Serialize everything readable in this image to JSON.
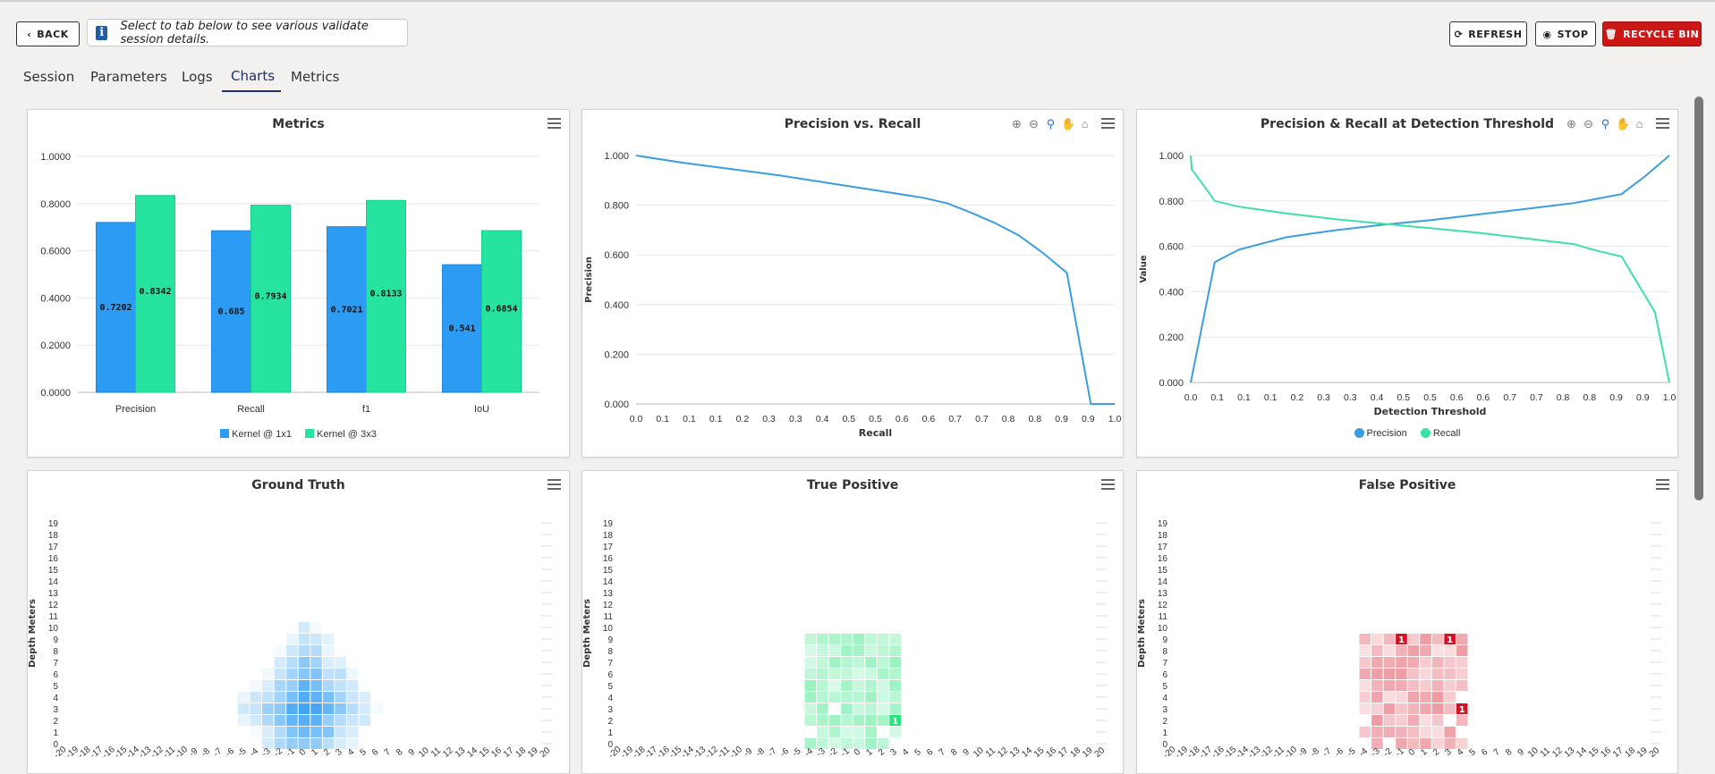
{
  "header": {
    "back_label": "BACK",
    "info_text": "Select to tab below to see various validate session details.",
    "refresh_label": "REFRESH",
    "stop_label": "STOP",
    "recycle_label": "RECYCLE BIN"
  },
  "tabs": [
    "Session",
    "Parameters",
    "Logs",
    "Charts",
    "Metrics"
  ],
  "active_tab": "Charts",
  "colors": {
    "blue": "#2b9bf4",
    "green": "#26e4a0",
    "line_blue": "#3a9ee0",
    "line_green": "#3ee0a6",
    "red": "#d61124",
    "recycle": "#cc1717"
  },
  "icons": {
    "back": "chevron-left-icon",
    "info": "info-icon",
    "refresh": "refresh-icon",
    "stop": "stop-circle-icon",
    "recycle": "trash-icon",
    "menu": "hamburger-menu-icon",
    "zoom_in": "zoom-in-icon",
    "zoom_out": "zoom-out-icon",
    "magnify": "magnify-icon",
    "pan": "pan-hand-icon",
    "home": "home-icon"
  },
  "chart_data": [
    {
      "type": "bar",
      "title": "Metrics",
      "categories": [
        "Precision",
        "Recall",
        "f1",
        "IoU"
      ],
      "series": [
        {
          "name": "Kernel @ 1x1",
          "values": [
            0.7202,
            0.685,
            0.7021,
            0.541
          ],
          "labels": [
            "0.7202",
            "0.685",
            "0.7021",
            "0.541"
          ]
        },
        {
          "name": "Kernel @ 3x3",
          "values": [
            0.8342,
            0.7934,
            0.8133,
            0.6854
          ],
          "labels": [
            "0.8342",
            "0.7934",
            "0.8133",
            "0.6854"
          ]
        }
      ],
      "y_ticks": [
        "0.0000",
        "0.2000",
        "0.4000",
        "0.6000",
        "0.8000",
        "1.0000"
      ],
      "ylim": [
        0,
        1
      ],
      "legend_position": "bottom-center"
    },
    {
      "type": "line",
      "title": "Precision vs. Recall",
      "xlabel": "Recall",
      "ylabel": "Precision",
      "xlim": [
        0,
        1
      ],
      "ylim": [
        0,
        1
      ],
      "x_ticks": [
        "0.0",
        "0.1",
        "0.1",
        "0.1",
        "0.2",
        "0.3",
        "0.3",
        "0.4",
        "0.5",
        "0.5",
        "0.6",
        "0.6",
        "0.7",
        "0.7",
        "0.8",
        "0.8",
        "0.9",
        "0.9",
        "1.0"
      ],
      "y_ticks": [
        "0.000",
        "0.200",
        "0.400",
        "0.600",
        "0.800",
        "1.000"
      ],
      "series": [
        {
          "x": [
            0.0,
            0.1,
            0.2,
            0.3,
            0.4,
            0.5,
            0.6,
            0.65,
            0.7,
            0.75,
            0.8,
            0.85,
            0.9,
            0.95,
            1.0
          ],
          "y": [
            1.0,
            0.97,
            0.945,
            0.92,
            0.89,
            0.86,
            0.83,
            0.808,
            0.77,
            0.728,
            0.678,
            0.608,
            0.528,
            0.0,
            0.0
          ]
        }
      ]
    },
    {
      "type": "line",
      "title": "Precision & Recall at Detection Threshold",
      "xlabel": "Detection Threshold",
      "ylabel": "Value",
      "xlim": [
        0,
        1
      ],
      "ylim": [
        0,
        1
      ],
      "x_ticks": [
        "0.0",
        "0.1",
        "0.1",
        "0.1",
        "0.2",
        "0.3",
        "0.3",
        "0.4",
        "0.5",
        "0.5",
        "0.6",
        "0.6",
        "0.7",
        "0.7",
        "0.8",
        "0.8",
        "0.9",
        "0.9",
        "1.0"
      ],
      "y_ticks": [
        "0.000",
        "0.200",
        "0.400",
        "0.600",
        "0.800",
        "1.000"
      ],
      "legend_position": "bottom-center",
      "series": [
        {
          "name": "Precision",
          "x": [
            0.0,
            0.05,
            0.1,
            0.2,
            0.3,
            0.4,
            0.5,
            0.6,
            0.7,
            0.8,
            0.9,
            0.95,
            1.0
          ],
          "y": [
            0.0,
            0.53,
            0.585,
            0.64,
            0.67,
            0.695,
            0.715,
            0.74,
            0.765,
            0.79,
            0.83,
            0.91,
            1.0
          ]
        },
        {
          "name": "Recall",
          "x": [
            0.0,
            0.002,
            0.05,
            0.1,
            0.2,
            0.3,
            0.4,
            0.5,
            0.6,
            0.7,
            0.8,
            0.85,
            0.9,
            0.97,
            1.0
          ],
          "y": [
            1.0,
            0.94,
            0.8,
            0.775,
            0.745,
            0.72,
            0.7,
            0.68,
            0.66,
            0.635,
            0.61,
            0.58,
            0.555,
            0.31,
            0.0
          ]
        }
      ]
    },
    {
      "type": "heatmap",
      "title": "Ground Truth",
      "ylabel": "Depth Meters",
      "x_ticks": [
        "-20",
        "-19",
        "-18",
        "-17",
        "-16",
        "-15",
        "-14",
        "-13",
        "-12",
        "-11",
        "-10",
        "-9",
        "-8",
        "-7",
        "-6",
        "-5",
        "-4",
        "-3",
        "-2",
        "-1",
        "0",
        "1",
        "2",
        "3",
        "4",
        "5",
        "6",
        "7",
        "8",
        "9",
        "10",
        "11",
        "12",
        "13",
        "14",
        "15",
        "16",
        "17",
        "18",
        "19",
        "20"
      ],
      "y_ticks": [
        "0",
        "1",
        "2",
        "3",
        "4",
        "5",
        "6",
        "7",
        "8",
        "9",
        "10",
        "11",
        "12",
        "13",
        "14",
        "15",
        "16",
        "17",
        "18",
        "19"
      ],
      "color": "#2b9bf4"
    },
    {
      "type": "heatmap",
      "title": "True Positive",
      "ylabel": "Depth Meters",
      "x_ticks": [
        "-20",
        "-19",
        "-18",
        "-17",
        "-16",
        "-15",
        "-14",
        "-13",
        "-12",
        "-11",
        "-10",
        "-9",
        "-8",
        "-7",
        "-6",
        "-5",
        "-4",
        "-3",
        "-2",
        "-1",
        "0",
        "1",
        "2",
        "3",
        "4",
        "5",
        "6",
        "7",
        "8",
        "9",
        "10",
        "11",
        "12",
        "13",
        "14",
        "15",
        "16",
        "17",
        "18",
        "19",
        "20"
      ],
      "y_ticks": [
        "0",
        "1",
        "2",
        "3",
        "4",
        "5",
        "6",
        "7",
        "8",
        "9",
        "10",
        "11",
        "12",
        "13",
        "14",
        "15",
        "16",
        "17",
        "18",
        "19"
      ],
      "color": "#26e47a",
      "labeled_cells": [
        {
          "x": 3,
          "y": 2,
          "label": "1"
        }
      ]
    },
    {
      "type": "heatmap",
      "title": "False Positive",
      "ylabel": "Depth Meters",
      "x_ticks": [
        "-20",
        "-19",
        "-18",
        "-17",
        "-16",
        "-15",
        "-14",
        "-13",
        "-12",
        "-11",
        "-10",
        "-9",
        "-8",
        "-7",
        "-6",
        "-5",
        "-4",
        "-3",
        "-2",
        "-1",
        "0",
        "1",
        "2",
        "3",
        "4",
        "5",
        "6",
        "7",
        "8",
        "9",
        "10",
        "11",
        "12",
        "13",
        "14",
        "15",
        "16",
        "17",
        "18",
        "19",
        "20"
      ],
      "y_ticks": [
        "0",
        "1",
        "2",
        "3",
        "4",
        "5",
        "6",
        "7",
        "8",
        "9",
        "10",
        "11",
        "12",
        "13",
        "14",
        "15",
        "16",
        "17",
        "18",
        "19"
      ],
      "color": "#d61124",
      "labeled_cells": [
        {
          "x": -1,
          "y": 9,
          "label": "1"
        },
        {
          "x": 3,
          "y": 9,
          "label": "1"
        },
        {
          "x": 4,
          "y": 3,
          "label": "1"
        }
      ]
    }
  ]
}
